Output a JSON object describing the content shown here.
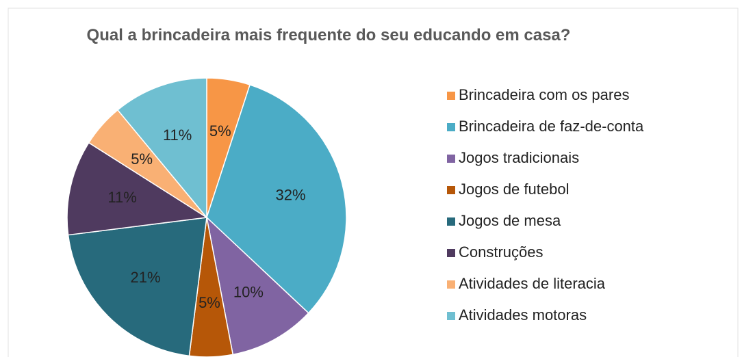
{
  "chart_data": {
    "type": "pie",
    "title": "Qual a brincadeira mais frequente do seu educando em casa?",
    "categories": [
      "Brincadeira com os pares",
      "Brincadeira de faz-de-conta",
      "Jogos tradicionais",
      "Jogos de futebol",
      "Jogos de mesa",
      "Construções",
      "Atividades de literacia",
      "Atividades motoras"
    ],
    "values": [
      5,
      32,
      10,
      5,
      21,
      11,
      5,
      11
    ],
    "value_labels": [
      "5%",
      "32%",
      "10%",
      "5%",
      "21%",
      "11%",
      "5%",
      "11%"
    ],
    "colors": [
      "#f79646",
      "#4bacc6",
      "#8064a2",
      "#b65708",
      "#276a7c",
      "#4f3a5f",
      "#f9b074",
      "#6fbfd1"
    ],
    "legend": "right"
  }
}
